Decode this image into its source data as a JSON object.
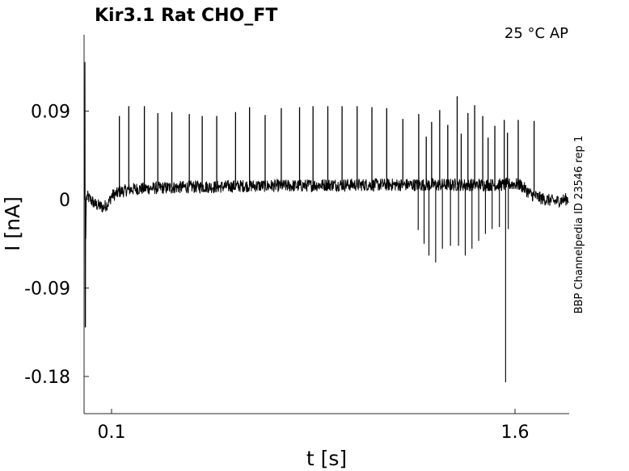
{
  "chart_data": {
    "type": "line",
    "title": "Kir3.1  Rat  CHO_FT",
    "condition": "25 °C  AP",
    "side_label": "BBP Channelpedia ID 23546 rep 1",
    "xlabel": "t [s]",
    "ylabel": "I [nA]",
    "xlim": [
      0.0,
      1.8
    ],
    "ylim": [
      -0.2,
      0.08
    ],
    "xticks": [
      {
        "value": 0.1,
        "label": "0.1"
      },
      {
        "value": 1.6,
        "label": "1.6"
      }
    ],
    "yticks": [
      {
        "value": 0.09,
        "label": "0.09"
      },
      {
        "value": 0,
        "label": "0"
      },
      {
        "value": -0.09,
        "label": "-0.09"
      },
      {
        "value": -0.18,
        "label": "-0.18"
      }
    ],
    "grid": false,
    "color": "#000000",
    "series": [
      {
        "x": [
          0.0,
          0.001,
          0.002,
          0.003,
          0.004,
          0.006,
          0.01,
          0.04,
          0.07,
          0.09,
          0.1,
          0.12,
          0.13,
          0.15,
          0.16,
          0.2,
          0.3,
          0.4,
          0.5,
          0.6,
          0.7,
          0.8,
          0.9,
          1.0,
          1.1,
          1.2,
          1.3,
          1.4,
          1.5,
          1.55,
          1.6,
          1.62,
          1.64,
          1.66,
          1.7,
          1.75,
          1.8
        ],
        "y": [
          0.0,
          0.14,
          -0.13,
          0.0,
          -0.04,
          0.003,
          0.003,
          -0.005,
          -0.008,
          -0.003,
          0.004,
          0.006,
          0.008,
          0.009,
          0.01,
          0.011,
          0.012,
          0.013,
          0.013,
          0.014,
          0.014,
          0.014,
          0.015,
          0.015,
          0.015,
          0.015,
          0.015,
          0.015,
          0.015,
          0.015,
          0.016,
          0.015,
          0.01,
          0.005,
          0.001,
          -0.002,
          0.001
        ]
      }
    ],
    "spikes_up": [
      {
        "t": 0.129,
        "y": 0.085
      },
      {
        "t": 0.164,
        "y": 0.095
      },
      {
        "t": 0.222,
        "y": 0.095
      },
      {
        "t": 0.272,
        "y": 0.088
      },
      {
        "t": 0.324,
        "y": 0.089
      },
      {
        "t": 0.389,
        "y": 0.087
      },
      {
        "t": 0.437,
        "y": 0.085
      },
      {
        "t": 0.491,
        "y": 0.085
      },
      {
        "t": 0.561,
        "y": 0.089
      },
      {
        "t": 0.613,
        "y": 0.094
      },
      {
        "t": 0.671,
        "y": 0.086
      },
      {
        "t": 0.731,
        "y": 0.093
      },
      {
        "t": 0.799,
        "y": 0.094
      },
      {
        "t": 0.849,
        "y": 0.095
      },
      {
        "t": 0.904,
        "y": 0.095
      },
      {
        "t": 0.957,
        "y": 0.095
      },
      {
        "t": 1.013,
        "y": 0.095
      },
      {
        "t": 1.068,
        "y": 0.094
      },
      {
        "t": 1.123,
        "y": 0.093
      },
      {
        "t": 1.183,
        "y": 0.082
      },
      {
        "t": 1.242,
        "y": 0.087
      },
      {
        "t": 1.27,
        "y": 0.064
      },
      {
        "t": 1.29,
        "y": 0.079
      },
      {
        "t": 1.32,
        "y": 0.091
      },
      {
        "t": 1.35,
        "y": 0.076
      },
      {
        "t": 1.385,
        "y": 0.105
      },
      {
        "t": 1.4,
        "y": 0.067
      },
      {
        "t": 1.425,
        "y": 0.088
      },
      {
        "t": 1.45,
        "y": 0.096
      },
      {
        "t": 1.48,
        "y": 0.085
      },
      {
        "t": 1.5,
        "y": 0.063
      },
      {
        "t": 1.525,
        "y": 0.075
      },
      {
        "t": 1.56,
        "y": 0.081
      },
      {
        "t": 1.572,
        "y": 0.068
      },
      {
        "t": 1.612,
        "y": 0.081
      },
      {
        "t": 1.671,
        "y": 0.08
      }
    ],
    "spikes_down": [
      {
        "t": 0.003,
        "y": -0.13
      },
      {
        "t": 1.24,
        "y": -0.031
      },
      {
        "t": 1.262,
        "y": -0.045
      },
      {
        "t": 1.28,
        "y": -0.057
      },
      {
        "t": 1.305,
        "y": -0.064
      },
      {
        "t": 1.33,
        "y": -0.05
      },
      {
        "t": 1.36,
        "y": -0.047
      },
      {
        "t": 1.39,
        "y": -0.047
      },
      {
        "t": 1.415,
        "y": -0.057
      },
      {
        "t": 1.44,
        "y": -0.05
      },
      {
        "t": 1.465,
        "y": -0.042
      },
      {
        "t": 1.49,
        "y": -0.035
      },
      {
        "t": 1.515,
        "y": -0.03
      },
      {
        "t": 1.542,
        "y": -0.028
      },
      {
        "t": 1.565,
        "y": -0.186
      },
      {
        "t": 1.575,
        "y": -0.03
      }
    ]
  }
}
